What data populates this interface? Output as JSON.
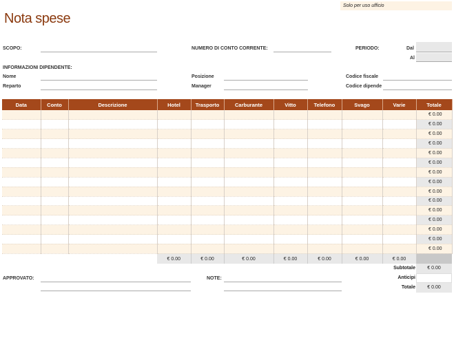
{
  "office_note": "Solo per uso ufficio",
  "title": "Nota spese",
  "fields": {
    "scopo": "SCOPO:",
    "conto": "NUMERO DI CONTO CORRENTE:",
    "periodo": "PERIODO:",
    "dal": "Dal",
    "al": "Al",
    "info": "INFORMAZIONI DIPENDENTE:",
    "nome": "Nome",
    "reparto": "Reparto",
    "posizione": "Posizione",
    "manager": "Manager",
    "codice_fiscale": "Codice fiscale",
    "codice_dipende": "Codice dipende"
  },
  "table": {
    "columns": [
      "Data",
      "Conto",
      "Descrizione",
      "Hotel",
      "Trasporto",
      "Carburante",
      "Vitto",
      "Telefono",
      "Svago",
      "Varie",
      "Totale"
    ],
    "row_totals": [
      "€ 0.00",
      "€ 0.00",
      "€ 0.00",
      "€ 0.00",
      "€ 0.00",
      "€ 0.00",
      "€ 0.00",
      "€ 0.00",
      "€ 0.00",
      "€ 0.00",
      "€ 0.00",
      "€ 0.00",
      "€ 0.00",
      "€ 0.00",
      "€ 0.00"
    ],
    "column_totals": [
      "€ 0.00",
      "€ 0.00",
      "€ 0.00",
      "€ 0.00",
      "€ 0.00",
      "€ 0.00",
      "€ 0.00"
    ]
  },
  "summary": {
    "subtotale_label": "Subtotale",
    "subtotale": "€ 0.00",
    "anticipi_label": "Anticipi",
    "anticipi": "",
    "totale_label": "Totale",
    "totale": "€ 0.00"
  },
  "footer": {
    "approvato": "APPROVATO:",
    "note": "NOTE:"
  },
  "colors": {
    "header": "#a4481b",
    "title": "#8b3a0f",
    "band": "#fdf3e4"
  }
}
